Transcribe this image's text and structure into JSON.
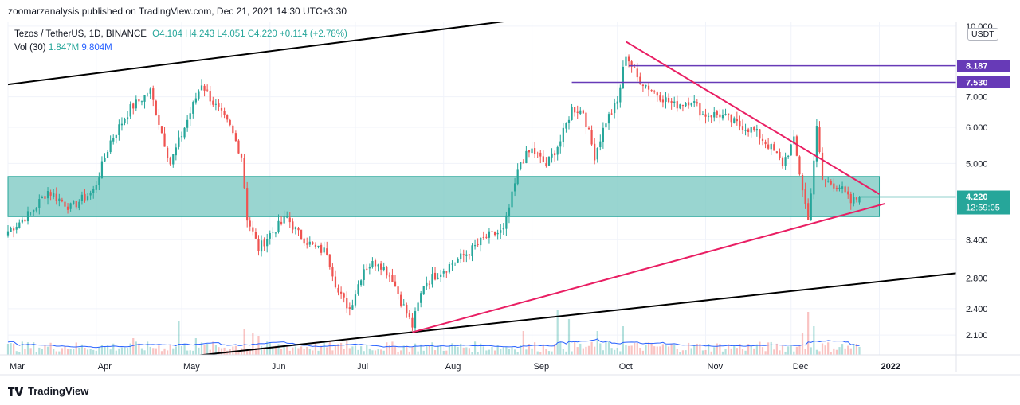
{
  "header": {
    "publisher": "zoomarzanalysis published on TradingView.com, Dec 21, 2021 14:30 UTC+3:30"
  },
  "legend": {
    "symbol": "Tezos / TetherUS, 1D, BINANCE",
    "ohlc": "O4.104 H4.243 L4.051 C4.220 +0.114 (+2.78%)",
    "vol_label": "Vol (30)",
    "vol_value": "1.847M",
    "vol_ma": "9.804M"
  },
  "currency": "USDT",
  "footer": {
    "brand": "TradingView"
  },
  "colors": {
    "up": "#26a69a",
    "down": "#ef5350",
    "zone": "#80cbc4",
    "pink": "#e91e63",
    "purple": "#673ab7",
    "line": "#000000",
    "vol_ma": "#2962ff"
  },
  "chart_data": {
    "type": "candlestick",
    "title": "Tezos / TetherUS, 1D, BINANCE",
    "y_scale": "log",
    "ylim": [
      1.9,
      10.2
    ],
    "y_ticks": [
      {
        "value": 10.0,
        "label": "10.000"
      },
      {
        "value": 7.0,
        "label": "7.000"
      },
      {
        "value": 6.0,
        "label": "6.000"
      },
      {
        "value": 5.0,
        "label": "5.000"
      },
      {
        "value": 3.4,
        "label": "3.400"
      },
      {
        "value": 2.8,
        "label": "2.800"
      },
      {
        "value": 2.4,
        "label": "2.400"
      },
      {
        "value": 2.1,
        "label": "2.100"
      }
    ],
    "x_ticks": [
      {
        "day": 0,
        "label": "Mar"
      },
      {
        "day": 31,
        "label": "Apr"
      },
      {
        "day": 61,
        "label": "May"
      },
      {
        "day": 92,
        "label": "Jun"
      },
      {
        "day": 122,
        "label": "Jul"
      },
      {
        "day": 153,
        "label": "Aug"
      },
      {
        "day": 184,
        "label": "Sep"
      },
      {
        "day": 214,
        "label": "Oct"
      },
      {
        "day": 245,
        "label": "Nov"
      },
      {
        "day": 275,
        "label": "Dec"
      },
      {
        "day": 306,
        "label": "2022"
      }
    ],
    "x_range_days": [
      0,
      333
    ],
    "price_labels": [
      {
        "value": 8.187,
        "label": "8.187",
        "color": "#673ab7"
      },
      {
        "value": 7.53,
        "label": "7.530",
        "color": "#673ab7"
      },
      {
        "value": 4.22,
        "label": "4.220",
        "sub": "12:59:05",
        "color": "#26a69a"
      }
    ],
    "zone": {
      "low": 3.82,
      "high": 4.68
    },
    "horizontal_levels": [
      {
        "value": 8.187,
        "from_day": 218
      },
      {
        "value": 7.53,
        "from_day": 198
      }
    ],
    "trend_lines": [
      {
        "name": "upper-channel",
        "p1": {
          "day": 0,
          "price": 7.45
        },
        "p2": {
          "day": 254,
          "price": 11.85
        },
        "color": "#000000"
      },
      {
        "name": "lower-channel",
        "p1": {
          "day": 48,
          "price": 1.84
        },
        "p2": {
          "day": 333,
          "price": 2.87
        },
        "color": "#000000"
      },
      {
        "name": "descending-resistance",
        "p1": {
          "day": 217,
          "price": 9.25
        },
        "p2": {
          "day": 306,
          "price": 4.28
        },
        "color": "#e91e63"
      },
      {
        "name": "ascending-support",
        "p1": {
          "day": 142,
          "price": 2.13
        },
        "p2": {
          "day": 308,
          "price": 4.08
        },
        "color": "#e91e63"
      }
    ],
    "anchors": [
      [
        0,
        3.55
      ],
      [
        8,
        3.9
      ],
      [
        14,
        4.35
      ],
      [
        22,
        4.0
      ],
      [
        30,
        4.35
      ],
      [
        36,
        5.6
      ],
      [
        43,
        6.6
      ],
      [
        50,
        7.2
      ],
      [
        57,
        5.0
      ],
      [
        62,
        6.0
      ],
      [
        68,
        7.5
      ],
      [
        72,
        6.8
      ],
      [
        78,
        6.0
      ],
      [
        82,
        5.2
      ],
      [
        84,
        3.8
      ],
      [
        88,
        3.25
      ],
      [
        92,
        3.5
      ],
      [
        98,
        3.8
      ],
      [
        102,
        3.5
      ],
      [
        108,
        3.25
      ],
      [
        112,
        3.2
      ],
      [
        116,
        2.6
      ],
      [
        120,
        2.4
      ],
      [
        125,
        2.95
      ],
      [
        130,
        3.05
      ],
      [
        135,
        2.8
      ],
      [
        138,
        2.5
      ],
      [
        142,
        2.2
      ],
      [
        146,
        2.72
      ],
      [
        152,
        2.9
      ],
      [
        156,
        3.02
      ],
      [
        162,
        3.2
      ],
      [
        168,
        3.45
      ],
      [
        174,
        3.55
      ],
      [
        180,
        5.05
      ],
      [
        184,
        5.35
      ],
      [
        189,
        4.95
      ],
      [
        194,
        5.6
      ],
      [
        198,
        6.6
      ],
      [
        202,
        6.5
      ],
      [
        206,
        5.2
      ],
      [
        210,
        6.2
      ],
      [
        214,
        6.8
      ],
      [
        217,
        8.7
      ],
      [
        221,
        7.7
      ],
      [
        228,
        7.1
      ],
      [
        234,
        6.7
      ],
      [
        240,
        6.9
      ],
      [
        244,
        6.4
      ],
      [
        250,
        6.4
      ],
      [
        256,
        6.1
      ],
      [
        262,
        5.9
      ],
      [
        268,
        5.4
      ],
      [
        272,
        5.0
      ],
      [
        276,
        5.6
      ],
      [
        279,
        4.4
      ],
      [
        281,
        3.75
      ],
      [
        284,
        5.95
      ],
      [
        286,
        4.6
      ],
      [
        292,
        4.45
      ],
      [
        296,
        4.1
      ],
      [
        299,
        4.22
      ]
    ],
    "last_candle": {
      "open": 4.104,
      "high": 4.243,
      "low": 4.051,
      "close": 4.22
    },
    "volume": {
      "label": "Vol (30)",
      "last": "1.847M",
      "ma": "9.804M",
      "spikes": [
        {
          "day": 44,
          "rel": 0.35
        },
        {
          "day": 60,
          "rel": 0.7
        },
        {
          "day": 66,
          "rel": 0.35
        },
        {
          "day": 83,
          "rel": 0.55
        },
        {
          "day": 86,
          "rel": 0.45
        },
        {
          "day": 88,
          "rel": 0.4
        },
        {
          "day": 119,
          "rel": 0.3
        },
        {
          "day": 181,
          "rel": 0.5
        },
        {
          "day": 193,
          "rel": 0.95
        },
        {
          "day": 197,
          "rel": 0.75
        },
        {
          "day": 207,
          "rel": 0.5
        },
        {
          "day": 216,
          "rel": 0.6
        },
        {
          "day": 279,
          "rel": 0.45
        },
        {
          "day": 281,
          "rel": 0.9
        },
        {
          "day": 283,
          "rel": 0.6
        }
      ]
    }
  }
}
